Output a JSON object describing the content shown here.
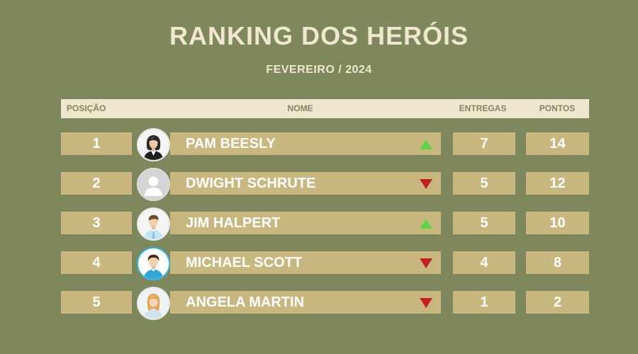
{
  "title": "RANKING DOS HERÓIS",
  "subtitle": "FEVEREIRO / 2024",
  "headers": {
    "position": "POSIÇÃO",
    "name": "NOME",
    "deliveries": "ENTREGAS",
    "points": "PONTOS"
  },
  "colors": {
    "background": "#7f875c",
    "row": "#c8b880",
    "header": "#efe6cf",
    "up": "#5fd44a",
    "down": "#c41e1e"
  },
  "rows": [
    {
      "position": "1",
      "name": "PAM BEESLY",
      "trend": "up",
      "deliveries": "7",
      "points": "14",
      "avatar": "woman-dark-hair-avatar-icon"
    },
    {
      "position": "2",
      "name": "DWIGHT SCHRUTE",
      "trend": "down",
      "deliveries": "5",
      "points": "12",
      "avatar": "default-user-avatar-icon"
    },
    {
      "position": "3",
      "name": "JIM HALPERT",
      "trend": "up",
      "deliveries": "5",
      "points": "10",
      "avatar": "man-light-hair-avatar-icon"
    },
    {
      "position": "4",
      "name": "MICHAEL SCOTT",
      "trend": "down",
      "deliveries": "4",
      "points": "8",
      "avatar": "man-dark-hair-avatar-icon"
    },
    {
      "position": "5",
      "name": "ANGELA MARTIN",
      "trend": "down",
      "deliveries": "1",
      "points": "2",
      "avatar": "woman-blonde-avatar-icon"
    }
  ]
}
